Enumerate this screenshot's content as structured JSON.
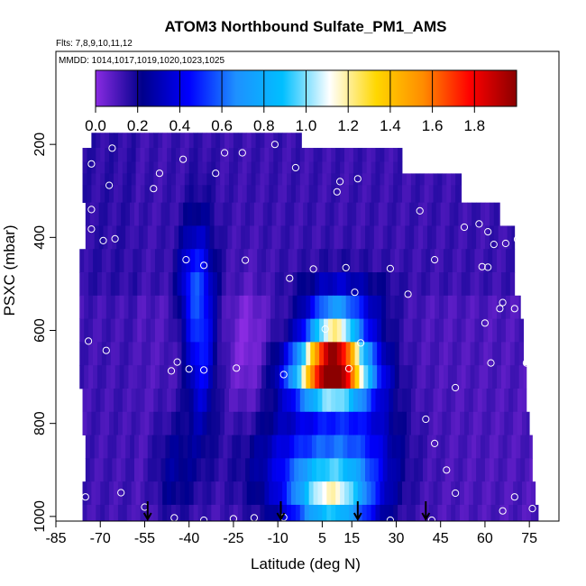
{
  "chart_data": {
    "type": "heatmap",
    "title": "ATOM3 Northbound Sulfate_PM1_AMS",
    "subtitle_flights": "Flts: 7,8,9,10,11,12",
    "subtitle_dates": "MMDD: 1014,1017,1019,1020,1023,1025",
    "xlabel": "Latitude (deg N)",
    "ylabel": "PSXC (mbar)",
    "xlim": [
      -85,
      85
    ],
    "ylim": [
      1010,
      0
    ],
    "x_ticks": [
      "-85",
      "-70",
      "-55",
      "-40",
      "-25",
      "-10",
      "5",
      "15",
      "30",
      "45",
      "60",
      "75"
    ],
    "x_tick_values": [
      -85,
      -70,
      -55,
      -40,
      -25,
      -10,
      5,
      15,
      30,
      45,
      60,
      75
    ],
    "y_ticks": [
      "200",
      "400",
      "600",
      "800",
      "1000"
    ],
    "y_tick_values": [
      200,
      400,
      600,
      800,
      1000
    ],
    "colorbar": {
      "range": [
        0,
        2.0
      ],
      "ticks": [
        "0.0",
        "0.2",
        "0.4",
        "0.6",
        "0.8",
        "1.0",
        "1.2",
        "1.4",
        "1.6",
        "1.8"
      ],
      "tick_values": [
        0.0,
        0.2,
        0.4,
        0.6,
        0.8,
        1.0,
        1.2,
        1.4,
        1.6,
        1.8
      ],
      "color_stops": [
        "#8a2be2",
        "#00008b",
        "#0000ff",
        "#1e90ff",
        "#00bfff",
        "#ffffff",
        "#ffd700",
        "#ff8c00",
        "#ff0000",
        "#8b0000"
      ]
    },
    "layers": [
      {
        "p": 190,
        "lat_min": -73,
        "lat_max": -2
      },
      {
        "p": 225,
        "lat_min": -76,
        "lat_max": 32
      },
      {
        "p": 250,
        "lat_min": -76,
        "lat_max": 32
      },
      {
        "p": 275,
        "lat_min": -76,
        "lat_max": 52
      },
      {
        "p": 300,
        "lat_min": -76,
        "lat_max": 52
      },
      {
        "p": 350,
        "lat_min": -75,
        "lat_max": 65
      },
      {
        "p": 400,
        "lat_min": -75,
        "lat_max": 70
      },
      {
        "p": 450,
        "lat_min": -77,
        "lat_max": 70
      },
      {
        "p": 500,
        "lat_min": -77,
        "lat_max": 70
      },
      {
        "p": 550,
        "lat_min": -77,
        "lat_max": 72
      },
      {
        "p": 600,
        "lat_min": -77,
        "lat_max": 73
      },
      {
        "p": 650,
        "lat_min": -77,
        "lat_max": 73
      },
      {
        "p": 700,
        "lat_min": -77,
        "lat_max": 74
      },
      {
        "p": 750,
        "lat_min": -76,
        "lat_max": 74
      },
      {
        "p": 800,
        "lat_min": -76,
        "lat_max": 75
      },
      {
        "p": 850,
        "lat_min": -75,
        "lat_max": 76
      },
      {
        "p": 900,
        "lat_min": -75,
        "lat_max": 76
      },
      {
        "p": 950,
        "lat_min": -76,
        "lat_max": 77
      },
      {
        "p": 1000,
        "lat_min": -76,
        "lat_max": 78
      }
    ],
    "features": [
      {
        "lat": 8,
        "p": 690,
        "sigma_lat": 9,
        "sigma_p": 45,
        "amp": 1.6
      },
      {
        "lat": 9,
        "p": 630,
        "sigma_lat": 6,
        "sigma_p": 60,
        "amp": 0.75
      },
      {
        "lat": 8,
        "p": 960,
        "sigma_lat": 9,
        "sigma_p": 60,
        "amp": 0.8
      },
      {
        "lat": 3,
        "p": 880,
        "sigma_lat": 16,
        "sigma_p": 90,
        "amp": 0.35
      },
      {
        "lat": -36,
        "p": 600,
        "sigma_lat": 3.5,
        "sigma_p": 150,
        "amp": 0.4
      },
      {
        "lat": -40,
        "p": 500,
        "sigma_lat": 3,
        "sigma_p": 80,
        "amp": 0.2
      },
      {
        "lat": -20,
        "p": 650,
        "sigma_lat": 4,
        "sigma_p": 110,
        "amp": -0.1
      },
      {
        "lat": -45,
        "p": 900,
        "sigma_lat": 5,
        "sigma_p": 80,
        "amp": 0.15
      },
      {
        "lat": 12,
        "p": 560,
        "sigma_lat": 10,
        "sigma_p": 50,
        "amp": 0.3
      },
      {
        "lat": 20,
        "p": 820,
        "sigma_lat": 8,
        "sigma_p": 120,
        "amp": 0.15
      }
    ],
    "observation_points": [
      {
        "lat": -66,
        "p": 208
      },
      {
        "lat": -42,
        "p": 232
      },
      {
        "lat": -28,
        "p": 218
      },
      {
        "lat": -22,
        "p": 218
      },
      {
        "lat": -11,
        "p": 200
      },
      {
        "lat": -50,
        "p": 262
      },
      {
        "lat": -52,
        "p": 295
      },
      {
        "lat": -67,
        "p": 288
      },
      {
        "lat": -73,
        "p": 242
      },
      {
        "lat": -31,
        "p": 262
      },
      {
        "lat": -4,
        "p": 250
      },
      {
        "lat": 11,
        "p": 280
      },
      {
        "lat": 17,
        "p": 274
      },
      {
        "lat": 10,
        "p": 302
      },
      {
        "lat": 38,
        "p": 343
      },
      {
        "lat": -73,
        "p": 340
      },
      {
        "lat": -73,
        "p": 382
      },
      {
        "lat": -69,
        "p": 407
      },
      {
        "lat": -65,
        "p": 403
      },
      {
        "lat": -41,
        "p": 448
      },
      {
        "lat": -35,
        "p": 460
      },
      {
        "lat": -21,
        "p": 449
      },
      {
        "lat": -6,
        "p": 488
      },
      {
        "lat": 2,
        "p": 468
      },
      {
        "lat": 13,
        "p": 465
      },
      {
        "lat": 28,
        "p": 467
      },
      {
        "lat": 43,
        "p": 448
      },
      {
        "lat": 53,
        "p": 378
      },
      {
        "lat": 58,
        "p": 371
      },
      {
        "lat": 63,
        "p": 415
      },
      {
        "lat": 67,
        "p": 413
      },
      {
        "lat": 71,
        "p": 404
      },
      {
        "lat": 61,
        "p": 388
      },
      {
        "lat": 59,
        "p": 463
      },
      {
        "lat": 61,
        "p": 464
      },
      {
        "lat": 65,
        "p": 553
      },
      {
        "lat": 66,
        "p": 540
      },
      {
        "lat": 60,
        "p": 584
      },
      {
        "lat": 70,
        "p": 553
      },
      {
        "lat": 16,
        "p": 518
      },
      {
        "lat": 34,
        "p": 522
      },
      {
        "lat": -74,
        "p": 623
      },
      {
        "lat": -68,
        "p": 643
      },
      {
        "lat": -44,
        "p": 668
      },
      {
        "lat": -40,
        "p": 683
      },
      {
        "lat": -35,
        "p": 685
      },
      {
        "lat": -46,
        "p": 687
      },
      {
        "lat": -24,
        "p": 681
      },
      {
        "lat": 18,
        "p": 627
      },
      {
        "lat": 6,
        "p": 597
      },
      {
        "lat": 14,
        "p": 682
      },
      {
        "lat": -8,
        "p": 695
      },
      {
        "lat": 62,
        "p": 670
      },
      {
        "lat": 74,
        "p": 670
      },
      {
        "lat": 50,
        "p": 723
      },
      {
        "lat": 40,
        "p": 791
      },
      {
        "lat": 43,
        "p": 843
      },
      {
        "lat": 47,
        "p": 900
      },
      {
        "lat": 50,
        "p": 950
      },
      {
        "lat": -75,
        "p": 958
      },
      {
        "lat": -63,
        "p": 949
      },
      {
        "lat": -55,
        "p": 980
      },
      {
        "lat": -45,
        "p": 1003
      },
      {
        "lat": -35,
        "p": 1008
      },
      {
        "lat": -25,
        "p": 1005
      },
      {
        "lat": -18,
        "p": 1003
      },
      {
        "lat": -8,
        "p": 1002
      },
      {
        "lat": 28,
        "p": 1008
      },
      {
        "lat": 42,
        "p": 1008
      },
      {
        "lat": 66,
        "p": 988
      },
      {
        "lat": 76,
        "p": 983
      },
      {
        "lat": 70,
        "p": 958
      }
    ],
    "arrows_lat": [
      -54,
      -9,
      17,
      40
    ]
  }
}
